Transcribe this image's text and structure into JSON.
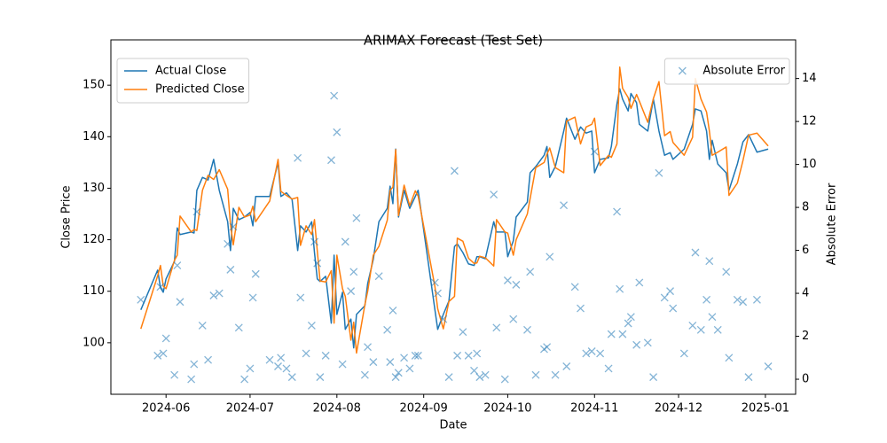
{
  "chart_data": {
    "type": "line",
    "title": "ARIMAX Forecast (Test Set)",
    "xlabel": "Date",
    "ylabel": "Close Price",
    "y2label": "Absolute Error",
    "x": [
      -9,
      -3,
      -2,
      -1,
      0,
      3,
      4,
      5,
      9,
      10,
      11,
      13,
      15,
      17,
      19,
      22,
      23,
      24,
      26,
      28,
      30,
      31,
      32,
      37,
      40,
      41,
      43,
      45,
      47,
      48,
      50,
      52,
      53,
      54,
      55,
      57,
      59,
      60,
      61,
      63,
      64,
      66,
      67,
      68,
      71,
      72,
      74,
      76,
      79,
      80,
      81,
      82,
      83,
      85,
      87,
      89,
      90,
      96,
      97,
      99,
      101,
      103,
      104,
      106,
      108,
      110,
      111,
      112,
      114,
      117,
      118,
      121,
      122,
      124,
      125,
      129,
      130,
      132,
      135,
      136,
      137,
      139,
      142,
      143,
      146,
      148,
      150,
      152,
      153,
      155,
      158,
      159,
      161,
      162,
      163,
      165,
      166,
      168,
      169,
      172,
      174,
      176,
      178,
      180,
      181,
      185,
      188,
      189,
      191,
      193,
      194,
      195,
      197,
      200,
      201,
      204,
      206,
      208,
      211,
      215
    ],
    "xlim": [
      -19.7,
      224.8
    ],
    "xticks": [
      {
        "value": 0,
        "label": "2024-06"
      },
      {
        "value": 30,
        "label": "2024-07"
      },
      {
        "value": 61,
        "label": "2024-08"
      },
      {
        "value": 92,
        "label": "2024-09"
      },
      {
        "value": 122,
        "label": "2024-10"
      },
      {
        "value": 153,
        "label": "2024-11"
      },
      {
        "value": 183,
        "label": "2024-12"
      },
      {
        "value": 214,
        "label": "2025-01"
      }
    ],
    "ylim": [
      90,
      158.8
    ],
    "yticks": [
      100,
      110,
      120,
      130,
      140,
      150
    ],
    "y2lim": [
      -0.7,
      15.8
    ],
    "y2ticks": [
      0,
      2,
      4,
      6,
      8,
      10,
      12,
      14
    ],
    "series": [
      {
        "name": "Actual Close",
        "color": "#1f77b4",
        "legend": "upper left",
        "values": [
          106.4,
          114.1,
          110.7,
          109.8,
          112.4,
          115.8,
          122.3,
          121.0,
          121.5,
          121.3,
          129.6,
          132.1,
          131.6,
          135.6,
          129.6,
          123.5,
          117.9,
          126.1,
          123.9,
          124.4,
          125.3,
          122.7,
          128.4,
          128.4,
          135.0,
          128.4,
          129.1,
          127.8,
          117.9,
          122.7,
          121.5,
          123.5,
          117.5,
          112.4,
          111.9,
          112.9,
          103.8,
          117.0,
          105.5,
          109.8,
          102.6,
          104.6,
          99.0,
          105.5,
          107.2,
          111.5,
          116.2,
          123.5,
          126.1,
          130.4,
          127.0,
          137.6,
          124.4,
          129.6,
          126.1,
          128.4,
          129.6,
          106.4,
          102.6,
          105.5,
          108.1,
          118.7,
          119.2,
          117.5,
          115.3,
          115.0,
          116.7,
          116.7,
          116.3,
          123.5,
          121.5,
          121.5,
          116.7,
          119.8,
          124.4,
          127.3,
          133.0,
          134.2,
          136.4,
          138.1,
          132.1,
          134.2,
          141.1,
          143.6,
          139.5,
          141.9,
          140.7,
          141.1,
          133.0,
          135.6,
          135.9,
          138.1,
          146.4,
          149.3,
          147.3,
          145.0,
          148.4,
          146.6,
          142.4,
          141.1,
          147.3,
          141.1,
          136.4,
          136.9,
          135.6,
          137.6,
          142.4,
          145.4,
          145.0,
          141.1,
          135.6,
          139.3,
          134.7,
          133.0,
          129.6,
          134.7,
          139.0,
          140.4,
          137.0,
          137.6
        ]
      },
      {
        "name": "Predicted Close",
        "color": "#ff7f0e",
        "legend": "upper left",
        "values": [
          102.7,
          113.0,
          115.0,
          111.0,
          110.5,
          116.0,
          117.0,
          124.6,
          121.5,
          122.0,
          121.8,
          129.6,
          132.5,
          131.7,
          133.6,
          129.8,
          123.0,
          119.0,
          126.3,
          124.4,
          124.8,
          126.5,
          123.5,
          127.5,
          135.6,
          129.4,
          128.6,
          127.9,
          128.2,
          118.9,
          122.7,
          121.0,
          123.9,
          117.8,
          112.0,
          111.8,
          114.0,
          103.8,
          117.0,
          110.5,
          109.0,
          100.5,
          104.0,
          98.0,
          107.4,
          110.0,
          117.0,
          118.7,
          123.8,
          129.6,
          130.2,
          137.5,
          124.7,
          130.6,
          126.6,
          129.5,
          128.5,
          110.9,
          106.6,
          102.7,
          108.0,
          109.0,
          120.3,
          119.7,
          116.4,
          115.4,
          115.5,
          116.8,
          116.5,
          114.9,
          123.9,
          121.5,
          121.3,
          117.0,
          120.0,
          125.0,
          128.0,
          134.0,
          135.0,
          136.6,
          137.8,
          134.0,
          133.0,
          143.0,
          143.8,
          138.6,
          141.9,
          142.4,
          143.6,
          134.4,
          136.4,
          136.0,
          138.6,
          153.5,
          149.4,
          147.6,
          145.5,
          148.2,
          146.9,
          142.8,
          147.4,
          150.7,
          140.2,
          141.0,
          138.9,
          136.4,
          139.9,
          151.3,
          147.3,
          144.8,
          141.1,
          136.4,
          137.0,
          138.0,
          128.6,
          131.0,
          135.4,
          140.3,
          140.7,
          138.2
        ]
      },
      {
        "name": "Absolute Error",
        "color": "#1f77b4",
        "legend": "upper right",
        "type": "scatter",
        "axis": "y2",
        "values": [
          3.7,
          1.1,
          4.3,
          1.2,
          1.9,
          0.2,
          5.3,
          3.6,
          0,
          0.7,
          7.8,
          2.5,
          0.9,
          3.9,
          4.0,
          6.3,
          5.1,
          7.1,
          2.4,
          0,
          0.5,
          3.8,
          4.9,
          0.9,
          0.6,
          1.0,
          0.5,
          0.1,
          10.3,
          3.8,
          1.2,
          2.5,
          6.4,
          5.4,
          0.1,
          1.1,
          10.2,
          13.2,
          11.5,
          0.7,
          6.4,
          4.1,
          5.0,
          7.5,
          0.2,
          1.5,
          0.8,
          4.8,
          2.3,
          0.8,
          3.2,
          0.1,
          0.3,
          1.0,
          0.5,
          1.1,
          1.1,
          4.5,
          4.0,
          2.8,
          0.1,
          9.7,
          1.1,
          2.2,
          1.1,
          0.4,
          1.2,
          0.1,
          0.2,
          8.6,
          2.4,
          0,
          4.6,
          2.8,
          4.4,
          2.3,
          5.0,
          0.2,
          1.4,
          1.5,
          5.7,
          0.2,
          8.1,
          0.6,
          4.3,
          3.3,
          1.2,
          1.3,
          10.6,
          1.2,
          0.5,
          2.1,
          7.8,
          4.2,
          2.1,
          2.6,
          2.9,
          1.6,
          4.5,
          1.7,
          0.1,
          9.6,
          3.8,
          4.1,
          3.3,
          1.2,
          2.5,
          5.9,
          2.3,
          3.7,
          5.5,
          2.9,
          2.3,
          5.0,
          1.0,
          3.7,
          3.6,
          0.1,
          3.7,
          0.6
        ]
      }
    ]
  }
}
